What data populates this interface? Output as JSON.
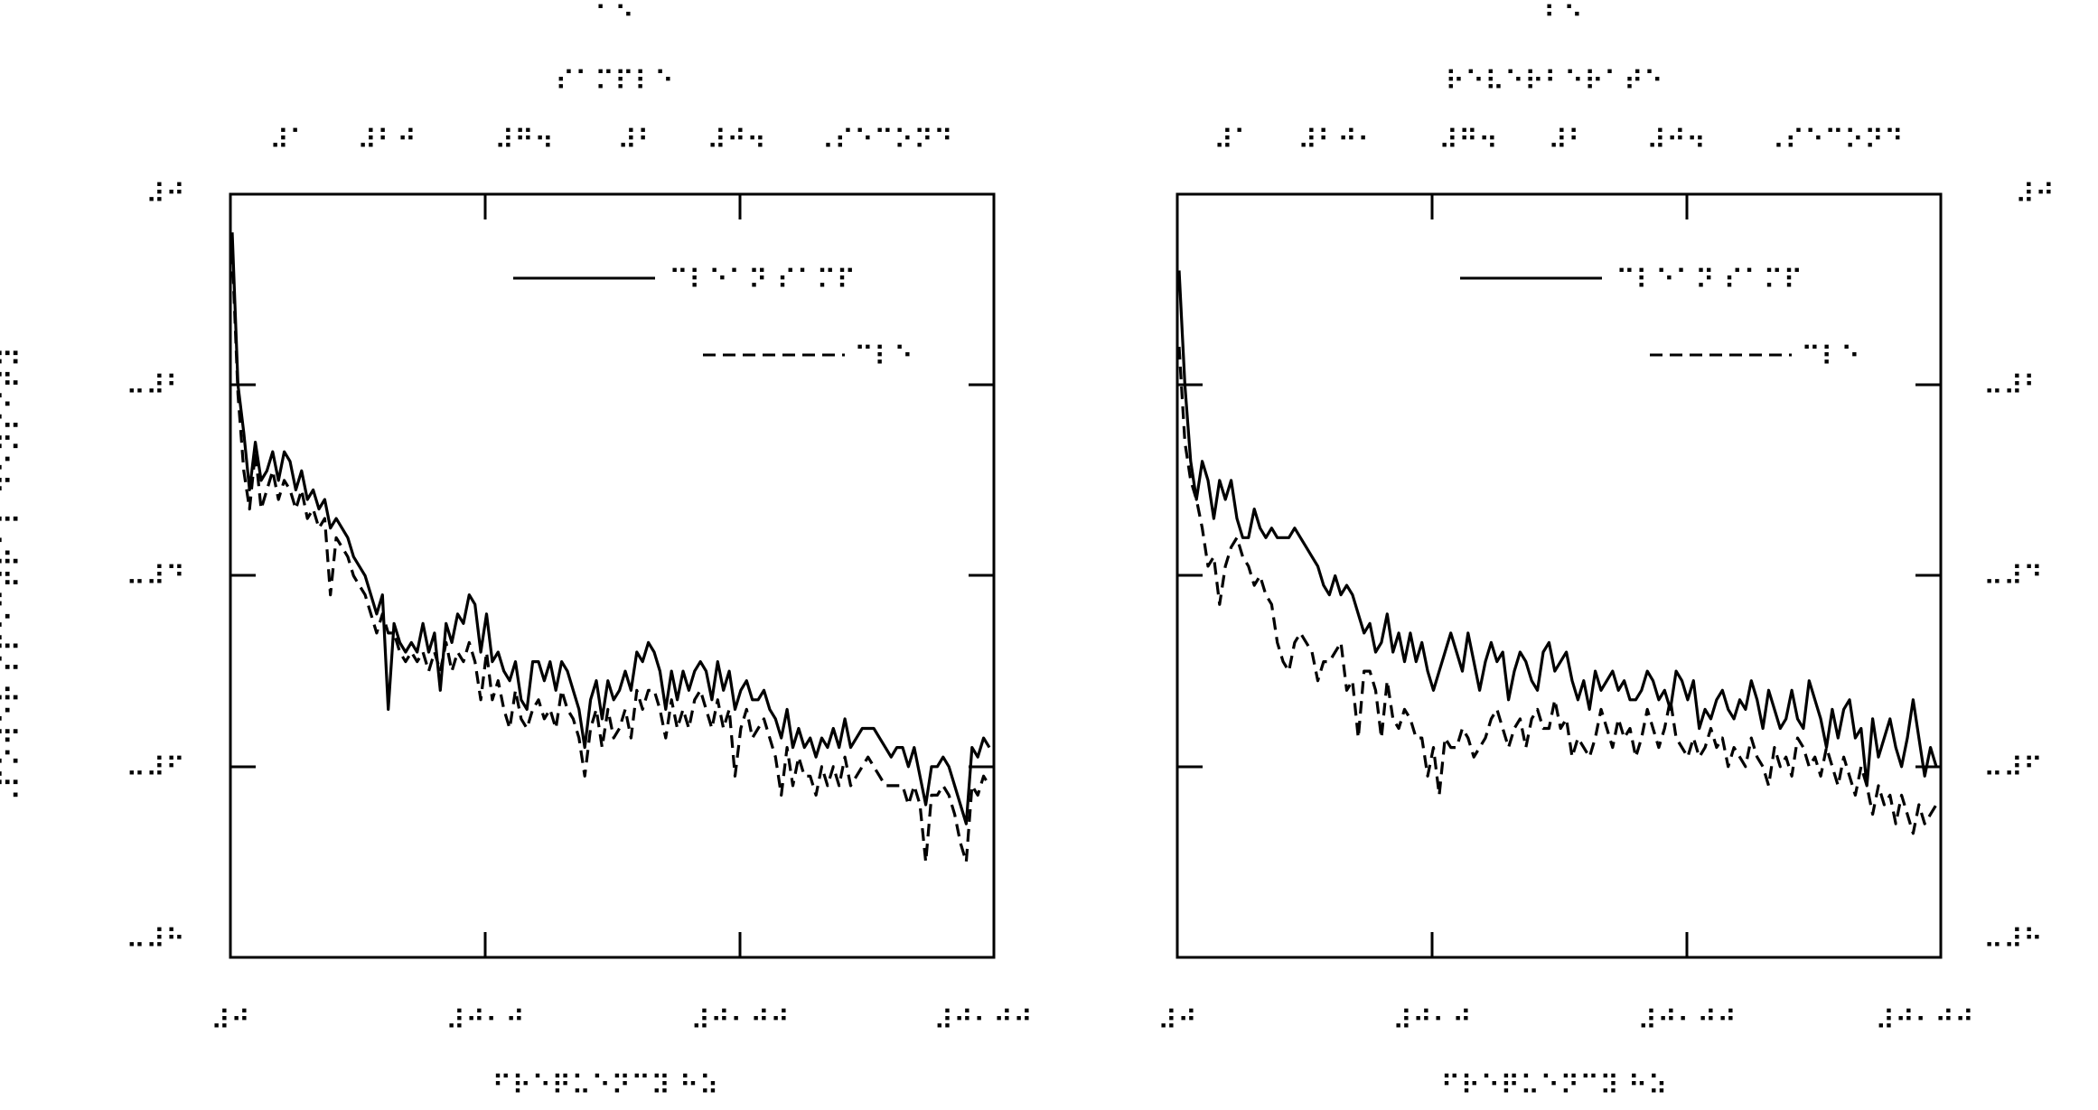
{
  "figure": {
    "ylabel": "⠠⠏⠕⠺⠑⠗ ⠎⠏⠑⠉⠞⠗⠁⠇ ⠙⠑⠝⠎⠊⠞⠽"
  },
  "panels": [
    {
      "panel_label": "⠁⠑",
      "title": "⠎⠁⠍⠏⠇⠑",
      "x_top_ticks": [
        "⠼⠁",
        "⠼⠃⠚",
        "⠼⠛⠲",
        "⠼⠃",
        "⠼⠚⠲",
        "⠠⠎⠑⠉⠕⠝⠙"
      ],
      "x_bottom_ticks": [
        "⠼⠚",
        "⠼⠚⠂⠚",
        "⠼⠚⠂⠚⠚",
        "⠼⠚⠂⠚⠚"
      ],
      "y_ticks": [
        "⠼⠚",
        "⠤⠼⠃",
        "⠤⠼⠙",
        "⠤⠼⠋",
        "⠤⠼⠓"
      ],
      "xlabel": "⠋⠗⠑⠟⠥⠑⠝⠉⠽ ⠓⠵",
      "legend": [
        "⠉⠇⠑⠁⠝ ⠎⠁⠍⠏",
        "⠉⠇⠑"
      ]
    },
    {
      "panel_label": "⠃⠑",
      "title": "⠗⠑⠧⠑⠗⠃⠑⠗⠁⠞⠑",
      "x_top_ticks": [
        "⠼⠁",
        "⠼⠃⠚⠂",
        "⠼⠛⠲",
        "⠼⠃",
        "⠼⠚⠲",
        "⠠⠎⠑⠉⠕⠝⠙"
      ],
      "x_bottom_ticks": [
        "⠼⠚",
        "⠼⠚⠂⠚",
        "⠼⠚⠂⠚⠚",
        "⠼⠚⠂⠚⠚"
      ],
      "y_ticks": [
        "⠼⠚",
        "⠤⠼⠃",
        "⠤⠼⠙",
        "⠤⠼⠋",
        "⠤⠼⠓"
      ],
      "xlabel": "⠋⠗⠑⠟⠥⠑⠝⠉⠽ ⠓⠵",
      "legend": [
        "⠉⠇⠑⠁⠝ ⠎⠁⠍⠏",
        "⠉⠇⠑"
      ]
    }
  ],
  "chart_data": [
    {
      "type": "line",
      "x_range": [
        0,
        3
      ],
      "y_range": [
        -8,
        0
      ],
      "grid": false,
      "legend_position": "top-right",
      "series": [
        {
          "name": "⠉⠇⠑⠁⠝ ⠎⠁⠍⠏",
          "style": "solid",
          "y": [
            -0.4,
            -2.0,
            -2.5,
            -3.1,
            -2.6,
            -3.0,
            -2.9,
            -2.7,
            -3.0,
            -2.7,
            -2.8,
            -3.1,
            -2.9,
            -3.2,
            -3.1,
            -3.3,
            -3.2,
            -3.5,
            -3.4,
            -3.5,
            -3.6,
            -3.8,
            -3.9,
            -4.0,
            -4.2,
            -4.4,
            -4.2,
            -5.4,
            -4.5,
            -4.7,
            -4.8,
            -4.7,
            -4.8,
            -4.5,
            -4.8,
            -4.6,
            -5.2,
            -4.5,
            -4.7,
            -4.4,
            -4.5,
            -4.2,
            -4.3,
            -4.8,
            -4.4,
            -4.9,
            -4.8,
            -5.0,
            -5.1,
            -4.9,
            -5.3,
            -5.4,
            -4.9,
            -4.9,
            -5.1,
            -4.9,
            -5.2,
            -4.9,
            -5.0,
            -5.2,
            -5.4,
            -5.8,
            -5.3,
            -5.1,
            -5.5,
            -5.1,
            -5.3,
            -5.2,
            -5.0,
            -5.2,
            -4.8,
            -4.9,
            -4.7,
            -4.8,
            -5.0,
            -5.4,
            -5.0,
            -5.3,
            -5.0,
            -5.2,
            -5.0,
            -4.9,
            -5.0,
            -5.3,
            -4.9,
            -5.2,
            -5.0,
            -5.4,
            -5.2,
            -5.1,
            -5.3,
            -5.3,
            -5.2,
            -5.4,
            -5.5,
            -5.7,
            -5.4,
            -5.8,
            -5.6,
            -5.8,
            -5.7,
            -5.9,
            -5.7,
            -5.8,
            -5.6,
            -5.8,
            -5.5,
            -5.8,
            -5.7,
            -5.6,
            -5.6,
            -5.6,
            -5.7,
            -5.8,
            -5.9,
            -5.8,
            -5.8,
            -6.0,
            -5.8,
            -6.1,
            -6.4,
            -6.0,
            -6.0,
            -5.9,
            -6.0,
            -6.2,
            -6.4,
            -6.6,
            -5.8,
            -5.9,
            -5.7,
            -5.8
          ]
        },
        {
          "name": "⠉⠇⠑",
          "style": "dashed",
          "y": [
            -0.6,
            -2.1,
            -2.9,
            -3.3,
            -2.7,
            -3.3,
            -3.1,
            -2.9,
            -3.2,
            -3.0,
            -3.1,
            -3.3,
            -3.1,
            -3.4,
            -3.3,
            -3.5,
            -3.4,
            -4.2,
            -3.6,
            -3.7,
            -3.8,
            -4.0,
            -4.1,
            -4.2,
            -4.4,
            -4.6,
            -4.4,
            -4.6,
            -4.6,
            -4.8,
            -4.9,
            -4.8,
            -4.9,
            -4.8,
            -5.0,
            -4.8,
            -5.0,
            -4.7,
            -5.0,
            -4.8,
            -4.9,
            -4.7,
            -4.9,
            -5.3,
            -4.8,
            -5.3,
            -5.1,
            -5.4,
            -5.6,
            -5.2,
            -5.5,
            -5.6,
            -5.4,
            -5.3,
            -5.5,
            -5.4,
            -5.6,
            -5.2,
            -5.4,
            -5.5,
            -5.7,
            -6.1,
            -5.6,
            -5.4,
            -5.8,
            -5.4,
            -5.7,
            -5.6,
            -5.4,
            -5.7,
            -5.2,
            -5.4,
            -5.2,
            -5.2,
            -5.4,
            -5.7,
            -5.3,
            -5.6,
            -5.4,
            -5.6,
            -5.3,
            -5.2,
            -5.4,
            -5.6,
            -5.3,
            -5.6,
            -5.4,
            -6.1,
            -5.6,
            -5.4,
            -5.7,
            -5.6,
            -5.5,
            -5.7,
            -5.9,
            -6.3,
            -5.8,
            -6.2,
            -5.9,
            -6.1,
            -6.1,
            -6.3,
            -6.0,
            -6.2,
            -6.0,
            -6.2,
            -5.9,
            -6.2,
            -6.1,
            -6.0,
            -5.9,
            -6.0,
            -6.1,
            -6.2,
            -6.2,
            -6.2,
            -6.2,
            -6.4,
            -6.2,
            -6.4,
            -7.0,
            -6.3,
            -6.3,
            -6.2,
            -6.3,
            -6.5,
            -6.8,
            -7.0,
            -6.2,
            -6.3,
            -6.1,
            -6.2
          ]
        }
      ]
    },
    {
      "type": "line",
      "x_range": [
        0,
        3
      ],
      "y_range": [
        -8,
        0
      ],
      "grid": false,
      "legend_position": "top-right",
      "series": [
        {
          "name": "⠉⠇⠑⠁⠝ ⠎⠁⠍⠏",
          "style": "solid",
          "y": [
            -0.8,
            -2.0,
            -2.8,
            -3.2,
            -2.8,
            -3.0,
            -3.4,
            -3.0,
            -3.2,
            -3.0,
            -3.4,
            -3.6,
            -3.6,
            -3.3,
            -3.5,
            -3.6,
            -3.5,
            -3.6,
            -3.6,
            -3.6,
            -3.5,
            -3.6,
            -3.7,
            -3.8,
            -3.9,
            -4.1,
            -4.2,
            -4.0,
            -4.2,
            -4.1,
            -4.2,
            -4.4,
            -4.6,
            -4.5,
            -4.8,
            -4.7,
            -4.4,
            -4.8,
            -4.6,
            -4.9,
            -4.6,
            -4.9,
            -4.7,
            -5.0,
            -5.2,
            -5.0,
            -4.8,
            -4.6,
            -4.8,
            -5.0,
            -4.6,
            -4.9,
            -5.2,
            -4.9,
            -4.7,
            -4.9,
            -4.8,
            -5.3,
            -5.0,
            -4.8,
            -4.9,
            -5.1,
            -5.2,
            -4.8,
            -4.7,
            -5.0,
            -4.9,
            -4.8,
            -5.1,
            -5.3,
            -5.1,
            -5.4,
            -5.0,
            -5.2,
            -5.1,
            -5.0,
            -5.2,
            -5.1,
            -5.3,
            -5.3,
            -5.2,
            -5.0,
            -5.1,
            -5.3,
            -5.2,
            -5.4,
            -5.0,
            -5.1,
            -5.3,
            -5.1,
            -5.6,
            -5.4,
            -5.5,
            -5.3,
            -5.2,
            -5.4,
            -5.5,
            -5.3,
            -5.4,
            -5.1,
            -5.3,
            -5.6,
            -5.2,
            -5.4,
            -5.6,
            -5.5,
            -5.2,
            -5.5,
            -5.6,
            -5.1,
            -5.3,
            -5.5,
            -5.8,
            -5.4,
            -5.7,
            -5.4,
            -5.3,
            -5.7,
            -5.6,
            -6.2,
            -5.5,
            -5.9,
            -5.7,
            -5.5,
            -5.8,
            -6.0,
            -5.7,
            -5.3,
            -5.7,
            -6.1,
            -5.8,
            -6.0
          ]
        },
        {
          "name": "⠉⠇⠑",
          "style": "dashed",
          "y": [
            -1.6,
            -2.6,
            -3.0,
            -3.2,
            -3.5,
            -3.9,
            -3.8,
            -4.3,
            -3.9,
            -3.7,
            -3.6,
            -3.8,
            -3.9,
            -4.1,
            -4.0,
            -4.2,
            -4.3,
            -4.7,
            -4.9,
            -5.0,
            -4.7,
            -4.6,
            -4.7,
            -4.8,
            -5.1,
            -4.9,
            -4.9,
            -4.8,
            -4.7,
            -5.2,
            -5.1,
            -5.7,
            -5.0,
            -5.0,
            -5.2,
            -5.7,
            -5.1,
            -5.5,
            -5.6,
            -5.4,
            -5.5,
            -5.7,
            -5.7,
            -6.1,
            -5.8,
            -6.3,
            -5.7,
            -5.8,
            -5.8,
            -5.6,
            -5.7,
            -5.9,
            -5.8,
            -5.7,
            -5.5,
            -5.4,
            -5.6,
            -5.8,
            -5.6,
            -5.5,
            -5.8,
            -5.5,
            -5.4,
            -5.6,
            -5.6,
            -5.3,
            -5.6,
            -5.5,
            -5.9,
            -5.7,
            -5.8,
            -5.9,
            -5.7,
            -5.4,
            -5.6,
            -5.8,
            -5.5,
            -5.7,
            -5.6,
            -5.9,
            -5.7,
            -5.4,
            -5.6,
            -5.8,
            -5.6,
            -5.3,
            -5.7,
            -5.8,
            -5.9,
            -5.7,
            -5.9,
            -5.8,
            -5.6,
            -5.8,
            -5.7,
            -6.0,
            -5.8,
            -5.9,
            -6.0,
            -5.7,
            -5.9,
            -6.0,
            -6.2,
            -5.8,
            -6.0,
            -5.9,
            -6.1,
            -5.7,
            -5.8,
            -6.0,
            -5.9,
            -6.1,
            -5.8,
            -6.0,
            -6.2,
            -5.9,
            -6.1,
            -6.3,
            -6.0,
            -6.2,
            -6.5,
            -6.2,
            -6.4,
            -6.3,
            -6.6,
            -6.3,
            -6.5,
            -6.7,
            -6.4,
            -6.6,
            -6.5,
            -6.4
          ]
        }
      ]
    }
  ]
}
